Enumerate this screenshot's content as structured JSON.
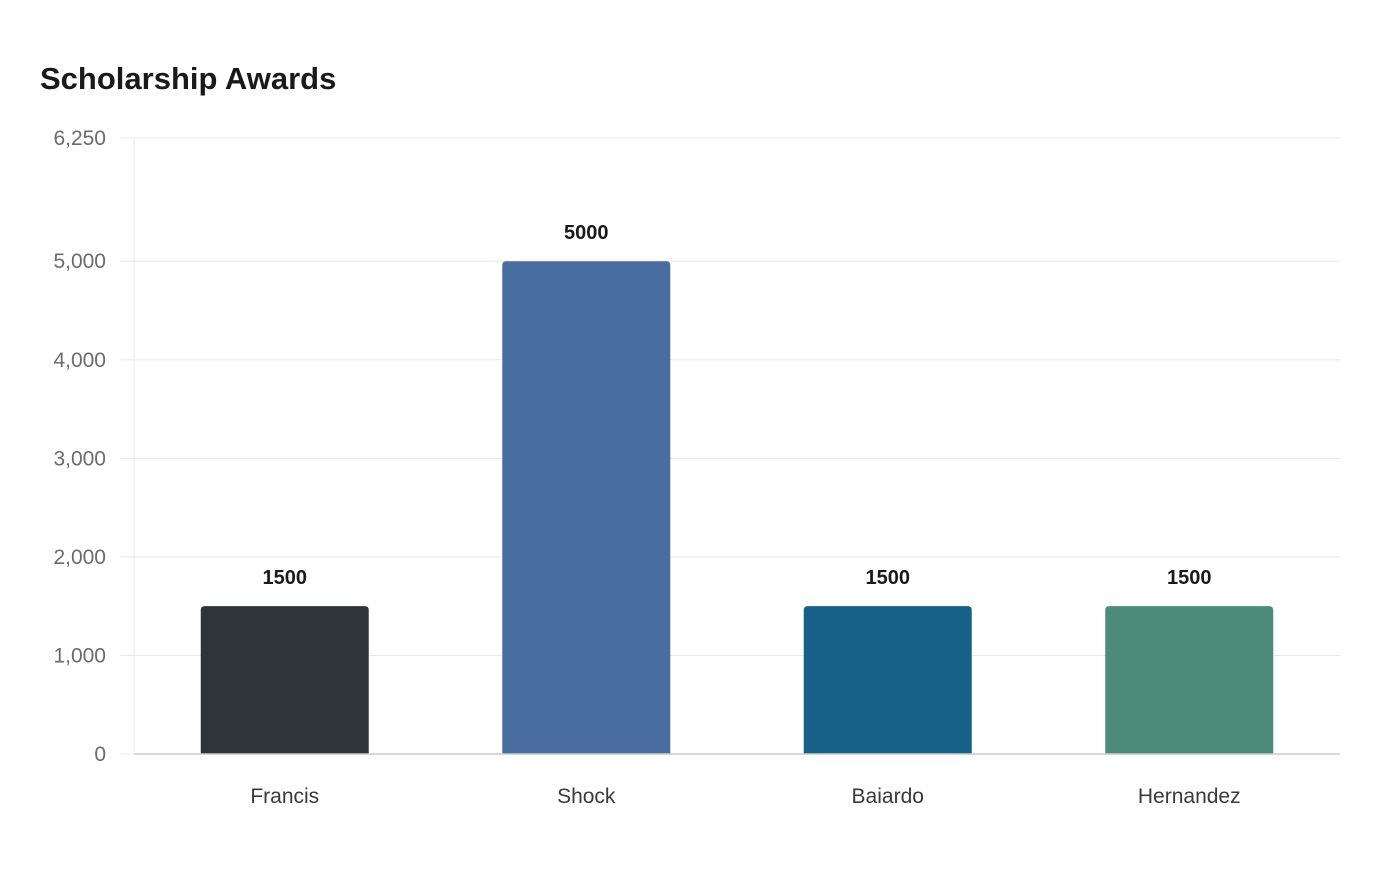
{
  "chart_data": {
    "type": "bar",
    "title": "Scholarship Awards",
    "categories": [
      "Francis",
      "Shock",
      "Baiardo",
      "Hernandez"
    ],
    "values": [
      1500,
      5000,
      1500,
      1500
    ],
    "value_labels": [
      "1500",
      "5000",
      "1500",
      "1500"
    ],
    "colors": [
      "#2e3538",
      "#4a6da0",
      "#176087",
      "#4e8c7a"
    ],
    "xlabel": "",
    "ylabel": "",
    "ylim": [
      0,
      6250
    ],
    "y_ticks": [
      0,
      1000,
      2000,
      3000,
      4000,
      5000,
      6250
    ],
    "y_tick_labels": [
      "0",
      "1,000",
      "2,000",
      "3,000",
      "4,000",
      "5,000",
      "6,250"
    ],
    "grid": true,
    "legend": "none"
  }
}
